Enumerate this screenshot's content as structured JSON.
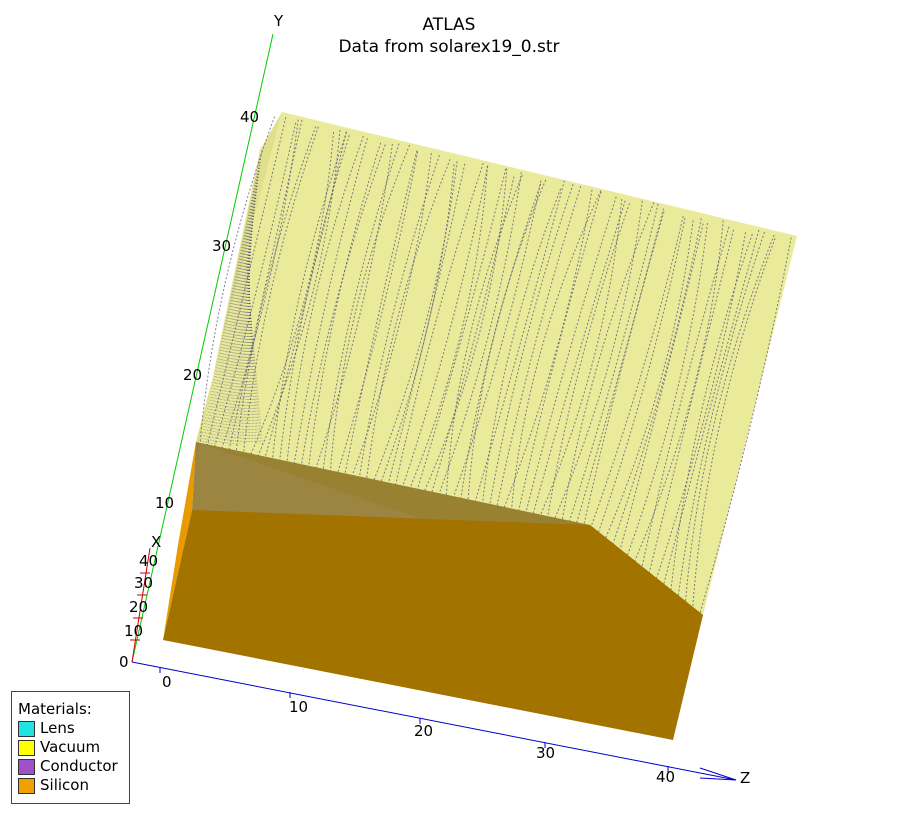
{
  "title": "ATLAS",
  "subtitle": "Data from solarex19_0.str",
  "axes": {
    "y_name": "Y",
    "z_name": "Z",
    "x_name": "X",
    "y_ticks": [
      "10",
      "20",
      "30",
      "40"
    ],
    "z_ticks": [
      "0",
      "10",
      "20",
      "30",
      "40"
    ],
    "x_ticks": [
      "0",
      "10",
      "20",
      "30",
      "40"
    ]
  },
  "legend": {
    "title": "Materials:",
    "items": [
      {
        "label": "Lens",
        "color": "#22e3e3"
      },
      {
        "label": "Vacuum",
        "color": "#ffff00"
      },
      {
        "label": "Conductor",
        "color": "#a050c8"
      },
      {
        "label": "Silicon",
        "color": "#f0a000"
      }
    ]
  },
  "colors": {
    "vacuum_fill": "#e8e890",
    "silicon_fill": "#a37300",
    "silicon_side": "#e89a00",
    "y_axis": "#00cc00",
    "z_axis": "#0000cc",
    "x_axis": "#cc0000",
    "streamlines": "#555577"
  }
}
